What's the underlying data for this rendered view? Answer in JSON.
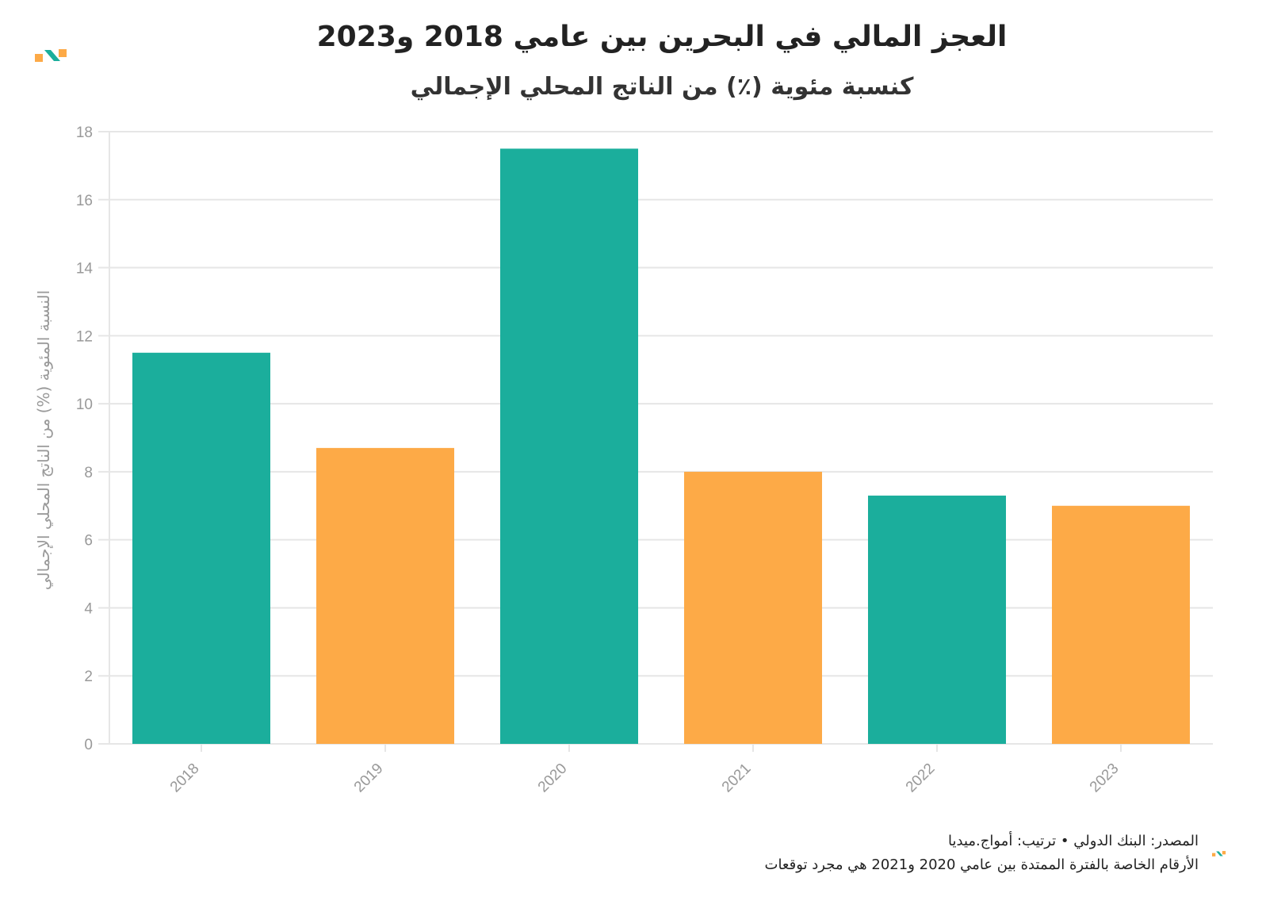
{
  "header": {
    "title": "العجز المالي في البحرين بين عامي 2018 و2023",
    "subtitle": "كنسبة مئوية (٪) من الناتج المحلي الإجمالي"
  },
  "colors": {
    "teal": "#1BAE9C",
    "orange": "#FDAA47",
    "grid": "#E6E6E6",
    "tick": "#999999"
  },
  "icons": {
    "brand_logo": "amwaj-logo-icon"
  },
  "footer": {
    "source_line": "المصدر: البنك الدولي • ترتيب: أمواج.ميديا",
    "note_line": "الأرقام الخاصة بالفترة الممتدة بين عامي 2020 و2021 هي مجرد توقعات"
  },
  "chart_data": {
    "type": "bar",
    "title": "العجز المالي في البحرين بين عامي 2018 و2023",
    "subtitle": "كنسبة مئوية (٪) من الناتج المحلي الإجمالي",
    "xlabel": "",
    "ylabel": "النسبة المئوية (%) من الناتج المحلي الإجمالي",
    "categories": [
      "2018",
      "2019",
      "2020",
      "2021",
      "2022",
      "2023"
    ],
    "values": [
      11.5,
      8.7,
      17.5,
      8.0,
      7.3,
      7.0
    ],
    "bar_colors": [
      "#1BAE9C",
      "#FDAA47",
      "#1BAE9C",
      "#FDAA47",
      "#1BAE9C",
      "#FDAA47"
    ],
    "ylim": [
      0,
      18
    ],
    "yticks": [
      0,
      2,
      4,
      6,
      8,
      10,
      12,
      14,
      16,
      18
    ],
    "grid": true,
    "legend": "none"
  }
}
